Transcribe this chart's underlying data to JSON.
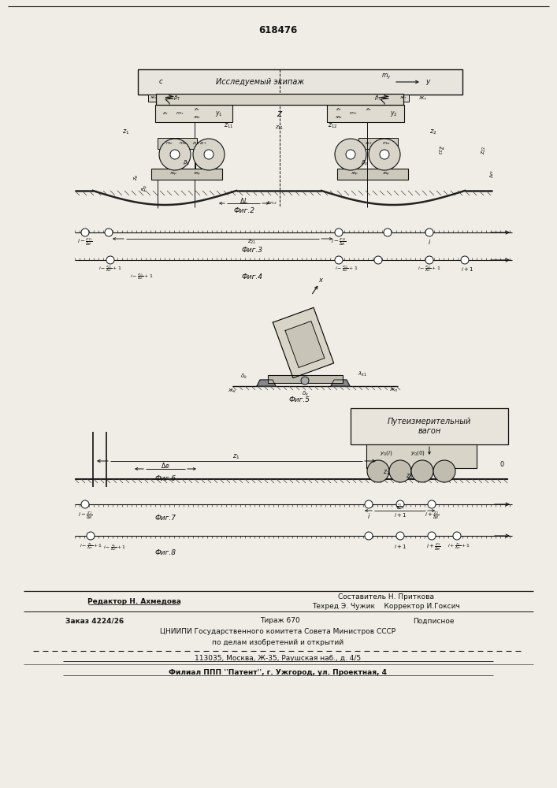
{
  "patent_number": "618476",
  "bg_color": "#f0ede6",
  "text_color": "#1a1a1a",
  "fig2_title": "Исследуемый экипаж",
  "fig_labels": {
    "fig2": "Фиг.2",
    "fig3": "Фиг.3",
    "fig4": "Фиг.4",
    "fig5": "Фиг.5",
    "fig6": "Фиг.6",
    "fig7": "Фиг.7",
    "fig8": "Фиг.8"
  },
  "puteizm": "Путеизмерительный\nвагон",
  "footer": {
    "line1a": "Редактор Н. Ахмедова",
    "line1b": "Составитель Н. Приткова",
    "line2a": "Техред Э. Чужик",
    "line2b": "Корректор И.Гоксич",
    "line3": "Заказ 4224/26",
    "line3b": "Тираж 670",
    "line3c": "Подписное",
    "line4": "ЦНИИПИ Государственного комитета Совета Министров СССР",
    "line5": "по делам изобретений и открытий",
    "line6": "113035, Москва, Ж-35, Раушская наб., д. 4/5",
    "line7": "Филиал ППП ''Патент'', г. Ужгород, ул. Проектная, 4"
  }
}
